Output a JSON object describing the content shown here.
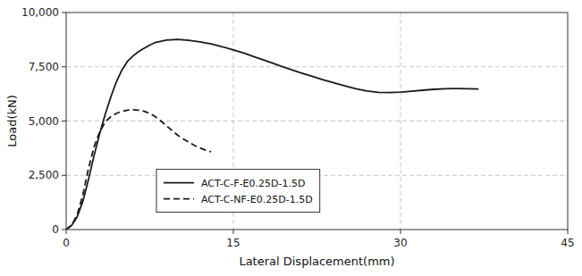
{
  "chart_data": {
    "type": "line",
    "x_label": "Lateral Displacement(mm)",
    "y_label": "Load(kN)",
    "xlim": [
      0,
      45
    ],
    "ylim": [
      0,
      10000
    ],
    "xticks": [
      0,
      15,
      30,
      45
    ],
    "yticks": [
      0,
      {
        "value": 2500,
        "label": "2,500"
      },
      {
        "value": 5000,
        "label": "5,000"
      },
      {
        "value": 7500,
        "label": "7,500"
      },
      {
        "value": 10000,
        "label": "10,000"
      }
    ],
    "grid": true,
    "legend": "lower left",
    "series": [
      {
        "name": "ACT-C-F-E0.25D-1.5D",
        "color": "#1a1a1a",
        "line_style": "solid",
        "x": [
          0,
          0.5,
          1,
          1.5,
          2,
          2.5,
          3,
          3.5,
          4,
          4.5,
          5,
          5.5,
          6,
          6.5,
          7,
          7.5,
          8,
          9,
          10,
          11,
          12,
          13,
          14,
          15,
          16,
          17,
          18,
          19,
          20,
          21,
          22,
          23,
          24,
          25,
          26,
          27,
          28,
          29,
          30,
          31,
          32,
          33,
          34,
          35,
          36,
          37
        ],
        "values": [
          0,
          200,
          600,
          1300,
          2300,
          3400,
          4400,
          5300,
          6100,
          6800,
          7350,
          7750,
          8000,
          8200,
          8350,
          8500,
          8620,
          8730,
          8760,
          8720,
          8650,
          8550,
          8420,
          8280,
          8120,
          7940,
          7760,
          7580,
          7400,
          7230,
          7070,
          6910,
          6760,
          6620,
          6490,
          6380,
          6320,
          6310,
          6330,
          6370,
          6420,
          6460,
          6490,
          6500,
          6490,
          6480
        ]
      },
      {
        "name": "ACT-C-NF-E0.25D-1.5D",
        "color": "#1a1a1a",
        "line_style": "dashed",
        "x": [
          0,
          0.5,
          1,
          1.5,
          2,
          2.5,
          3,
          3.5,
          4,
          4.5,
          5,
          5.5,
          6,
          6.5,
          7,
          7.5,
          8,
          8.5,
          9,
          9.5,
          10,
          10.5,
          11,
          11.5,
          12,
          12.5,
          13
        ],
        "values": [
          0,
          200,
          700,
          1600,
          2800,
          3800,
          4500,
          4950,
          5200,
          5350,
          5450,
          5500,
          5520,
          5500,
          5450,
          5350,
          5200,
          5000,
          4780,
          4560,
          4350,
          4180,
          4030,
          3880,
          3760,
          3660,
          3580
        ]
      }
    ]
  }
}
